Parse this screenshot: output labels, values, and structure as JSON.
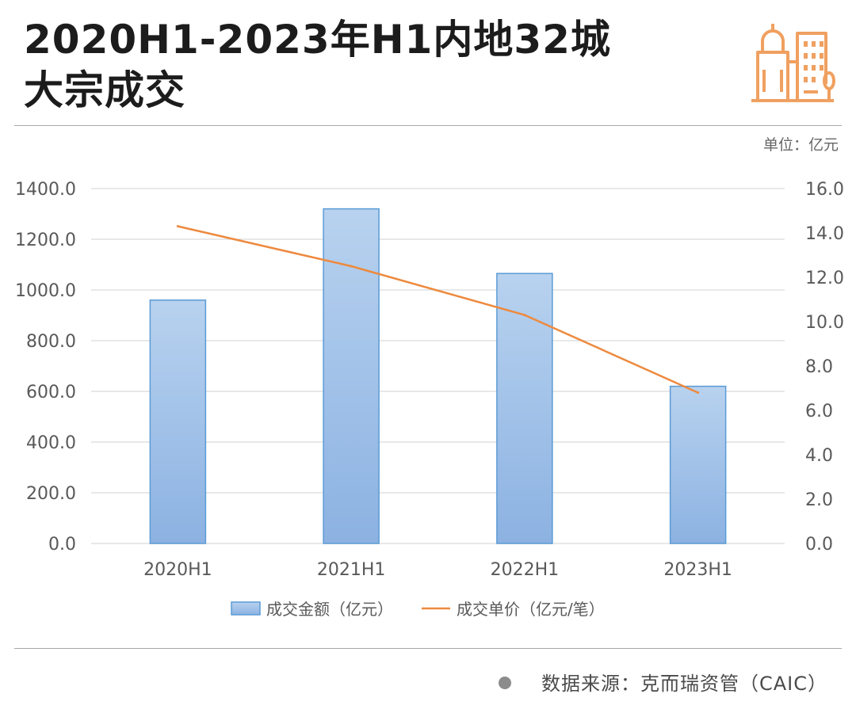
{
  "header": {
    "title_line1": "2020H1-2023年H1内地32城",
    "title_line2": "大宗成交",
    "logo_icon": "city-buildings-icon",
    "accent_color": "#f0a060"
  },
  "unit_label": "单位：亿元",
  "source": {
    "text": "数据来源：克而瑞资管（CAIC）",
    "bullet_icon": "bullet-dot-icon"
  },
  "chart_data": {
    "type": "bar",
    "categories": [
      "2020H1",
      "2021H1",
      "2022H1",
      "2023H1"
    ],
    "series": [
      {
        "name": "成交金额（亿元）",
        "type": "bar",
        "axis": "left",
        "values": [
          960,
          1320,
          1065,
          620
        ],
        "color": "#9dc0e8"
      },
      {
        "name": "成交单价（亿元/笔）",
        "type": "line",
        "axis": "right",
        "values": [
          14.3,
          12.5,
          10.3,
          6.8
        ],
        "color": "#ed8a3f"
      }
    ],
    "y_left": {
      "ylim": [
        0,
        1400
      ],
      "ticks": [
        "0.0",
        "200.0",
        "400.0",
        "600.0",
        "800.0",
        "1000.0",
        "1200.0",
        "1400.0"
      ]
    },
    "y_right": {
      "ylim": [
        0,
        16
      ],
      "ticks": [
        "0.0",
        "2.0",
        "4.0",
        "6.0",
        "8.0",
        "10.0",
        "12.0",
        "14.0",
        "16.0"
      ]
    },
    "grid": true,
    "legend_position": "bottom"
  }
}
